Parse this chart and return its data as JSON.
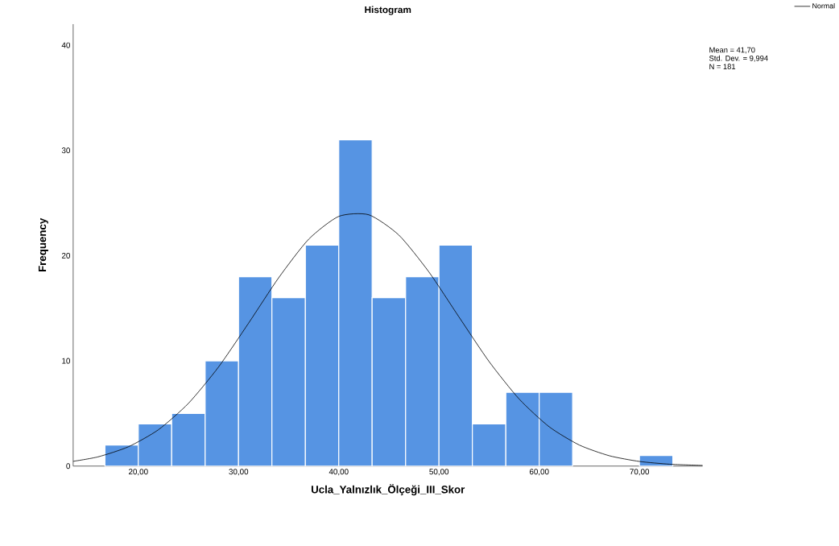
{
  "chart_data": {
    "type": "histogram",
    "title": "Histogram",
    "xlabel": "Ucla_Yalnızlık_Ölçeği_III_Skor",
    "ylabel": "Frequency",
    "xlim": [
      13.5,
      76.3
    ],
    "ylim": [
      0,
      42
    ],
    "xticks": [
      {
        "value": 20,
        "label": "20,00"
      },
      {
        "value": 30,
        "label": "30,00"
      },
      {
        "value": 40,
        "label": "40,00"
      },
      {
        "value": 50,
        "label": "50,00"
      },
      {
        "value": 60,
        "label": "60,00"
      },
      {
        "value": 70,
        "label": "70,00"
      }
    ],
    "yticks": [
      0,
      10,
      20,
      30,
      40
    ],
    "legend": "top right",
    "annotations": [
      "Mean = 41,70",
      "Std. Dev. = 9,994",
      "N = 181"
    ],
    "series": [
      {
        "color": "#5694e3",
        "bins": [
          16.67,
          20,
          23.33,
          26.67,
          30,
          33.33,
          36.67,
          40,
          43.33,
          46.67,
          50,
          53.33,
          56.67,
          60,
          63.33,
          66.67,
          70,
          73.33
        ],
        "values": [
          2,
          4,
          5,
          10,
          18,
          16,
          21,
          31,
          16,
          18,
          21,
          4,
          7,
          7,
          0,
          0,
          1
        ]
      },
      {
        "type": "line",
        "name": "Normal",
        "color": "#000000",
        "x": [
          13.5,
          16,
          19,
          22,
          25,
          28,
          31,
          34,
          37,
          40,
          43,
          46,
          49,
          52,
          55,
          58,
          61,
          64,
          67,
          70,
          73,
          76.3
        ],
        "values": [
          0.45,
          0.88,
          1.83,
          3.45,
          5.96,
          9.41,
          13.58,
          17.89,
          21.56,
          23.73,
          23.88,
          21.95,
          18.44,
          14.16,
          9.93,
          6.37,
          3.73,
          2.0,
          0.98,
          0.44,
          0.18,
          0.06
        ]
      }
    ]
  }
}
